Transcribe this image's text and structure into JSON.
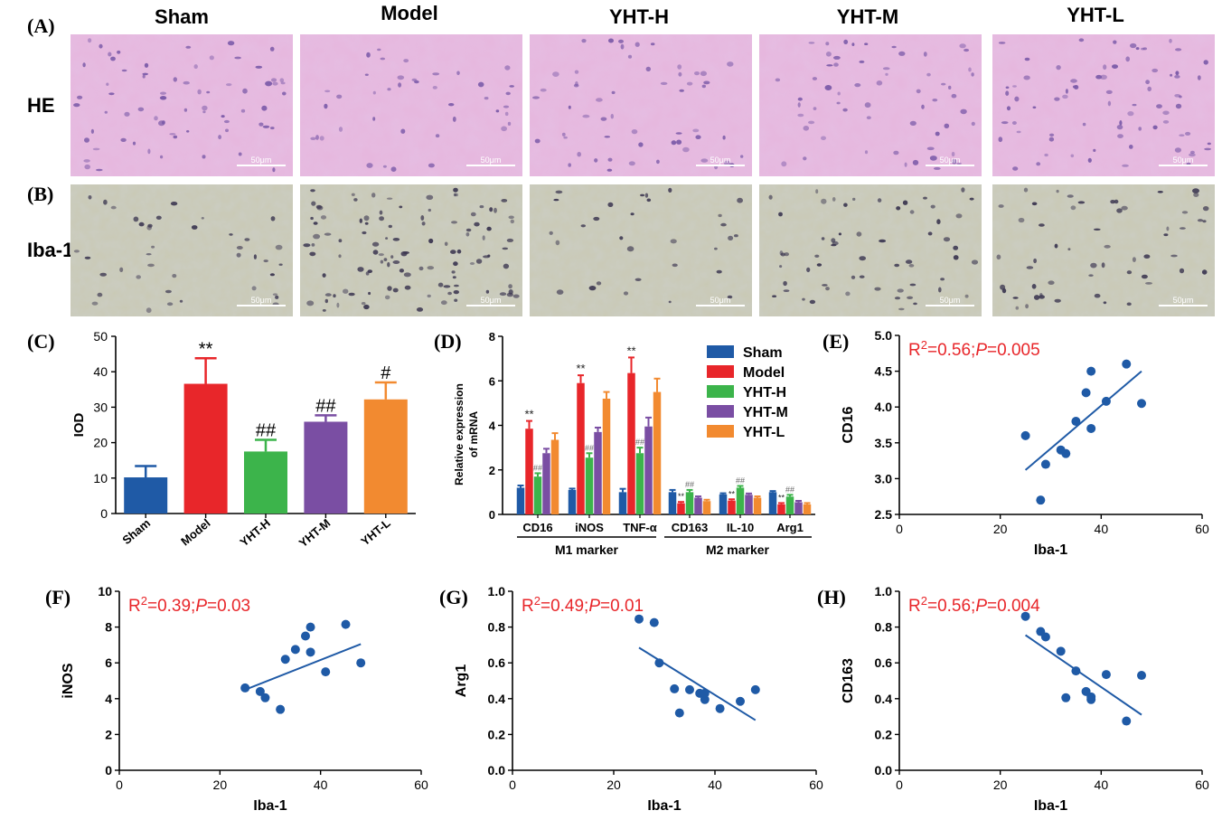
{
  "panel_labels": {
    "A": "(A)",
    "B": "(B)",
    "C": "(C)",
    "D": "(D)",
    "E": "(E)",
    "F": "(F)",
    "G": "(G)",
    "H": "(H)"
  },
  "groups": [
    "Sham",
    "Model",
    "YHT-H",
    "YHT-M",
    "YHT-L"
  ],
  "row_labels": {
    "he": "HE",
    "iba": "Iba-1"
  },
  "scale_bar": "50μm",
  "colors": {
    "Sham": "#1f5aa6",
    "Model": "#e8262a",
    "YHT-H": "#3cb44b",
    "YHT-M": "#7a4ea3",
    "YHT-L": "#f28a30",
    "red_text": "#e8262a",
    "point": "#1f5aa6"
  },
  "chart_data": [
    {
      "id": "C",
      "type": "bar",
      "categories": [
        "Sham",
        "Model",
        "YHT-H",
        "YHT-M",
        "YHT-L"
      ],
      "values": [
        10.2,
        36.6,
        17.5,
        25.9,
        32.2
      ],
      "errors": [
        3.2,
        7.2,
        3.3,
        1.8,
        4.8
      ],
      "annotations": [
        "",
        "**",
        "##",
        "##",
        "#"
      ],
      "ylabel": "IOD",
      "ylim": [
        0,
        50
      ],
      "yticks": [
        0,
        10,
        20,
        30,
        40,
        50
      ]
    },
    {
      "id": "D",
      "type": "bar",
      "categories": [
        "CD16",
        "iNOS",
        "TNF-α",
        "CD163",
        "IL-10",
        "Arg1"
      ],
      "series": [
        {
          "name": "Sham",
          "values": [
            1.2,
            1.1,
            1.0,
            1.0,
            0.9,
            1.0
          ],
          "errors": [
            0.1,
            0.06,
            0.15,
            0.1,
            0.05,
            0.05
          ]
        },
        {
          "name": "Model",
          "values": [
            3.85,
            5.9,
            6.35,
            0.5,
            0.62,
            0.45
          ],
          "errors": [
            0.35,
            0.35,
            0.7,
            0.06,
            0.06,
            0.06
          ]
        },
        {
          "name": "YHT-H",
          "values": [
            1.7,
            2.55,
            2.75,
            1.0,
            1.2,
            0.8
          ],
          "errors": [
            0.15,
            0.2,
            0.25,
            0.1,
            0.08,
            0.08
          ]
        },
        {
          "name": "YHT-M",
          "values": [
            2.75,
            3.7,
            3.95,
            0.75,
            0.88,
            0.55
          ],
          "errors": [
            0.2,
            0.2,
            0.4,
            0.06,
            0.06,
            0.06
          ]
        },
        {
          "name": "YHT-L",
          "values": [
            3.35,
            5.2,
            5.5,
            0.6,
            0.75,
            0.45
          ],
          "errors": [
            0.3,
            0.3,
            0.6,
            0.06,
            0.06,
            0.06
          ]
        }
      ],
      "annotations": {
        "Model": [
          "**",
          "**",
          "**",
          "**",
          "**",
          "**"
        ],
        "YHT-H": [
          "##",
          "##",
          "##",
          "##",
          "##",
          "##"
        ]
      },
      "ylabel": "Relative expression of mRNA",
      "ylim": [
        0,
        8
      ],
      "yticks": [
        0,
        2,
        4,
        6,
        8
      ],
      "group_labels": [
        "M1 marker",
        "M2 marker"
      ],
      "legend": "top-right"
    },
    {
      "id": "E",
      "type": "scatter",
      "x": [
        25,
        28,
        29,
        32,
        33,
        35,
        37,
        38,
        38,
        41,
        45,
        48
      ],
      "y": [
        3.6,
        2.7,
        3.2,
        3.4,
        3.35,
        3.8,
        4.2,
        4.5,
        3.7,
        4.08,
        4.6,
        4.05
      ],
      "fit": [
        [
          25,
          3.12
        ],
        [
          48,
          4.5
        ]
      ],
      "stat": "R²=0.56;P=0.005",
      "stat_r": "R",
      "stat_exp": "2",
      "stat_mid": "=0.56;",
      "stat_p": "P",
      "stat_end": "=0.005",
      "xlabel": "Iba-1",
      "ylabel": "CD16",
      "xlim": [
        0,
        60
      ],
      "ylim": [
        2.5,
        5.0
      ],
      "xticks": [
        0,
        20,
        40,
        60
      ],
      "yticks": [
        "2.5",
        "3.0",
        "3.5",
        "4.0",
        "4.5",
        "5.0"
      ]
    },
    {
      "id": "F",
      "type": "scatter",
      "x": [
        25,
        28,
        29,
        32,
        33,
        35,
        37,
        38,
        38,
        41,
        45,
        48
      ],
      "y": [
        4.6,
        4.4,
        4.05,
        3.4,
        6.2,
        6.75,
        7.5,
        8.0,
        6.6,
        5.5,
        8.15,
        6.0
      ],
      "fit": [
        [
          25,
          4.5
        ],
        [
          48,
          7.05
        ]
      ],
      "stat": "R²=0.39;P=0.03",
      "stat_r": "R",
      "stat_exp": "2",
      "stat_mid": "=0.39;",
      "stat_p": "P",
      "stat_end": "=0.03",
      "xlabel": "Iba-1",
      "ylabel": "iNOS",
      "xlim": [
        0,
        60
      ],
      "ylim": [
        0,
        10
      ],
      "xticks": [
        0,
        20,
        40,
        60
      ],
      "yticks": [
        "0",
        "2",
        "4",
        "6",
        "8",
        "10"
      ]
    },
    {
      "id": "G",
      "type": "scatter",
      "x": [
        25,
        28,
        29,
        32,
        33,
        35,
        37,
        38,
        38,
        41,
        45,
        48
      ],
      "y": [
        0.845,
        0.825,
        0.6,
        0.455,
        0.32,
        0.45,
        0.43,
        0.395,
        0.43,
        0.345,
        0.385,
        0.45
      ],
      "fit": [
        [
          25,
          0.685
        ],
        [
          48,
          0.28
        ]
      ],
      "stat": "R²=0.49;P=0.01",
      "stat_r": "R",
      "stat_exp": "2",
      "stat_mid": "=0.49;",
      "stat_p": "P",
      "stat_end": "=0.01",
      "xlabel": "Iba-1",
      "ylabel": "Arg1",
      "xlim": [
        0,
        60
      ],
      "ylim": [
        0,
        1.0
      ],
      "xticks": [
        0,
        20,
        40,
        60
      ],
      "yticks": [
        "0.0",
        "0.2",
        "0.4",
        "0.6",
        "0.8",
        "1.0"
      ]
    },
    {
      "id": "H",
      "type": "scatter",
      "x": [
        25,
        28,
        29,
        32,
        33,
        35,
        37,
        38,
        38,
        41,
        45,
        48
      ],
      "y": [
        0.86,
        0.775,
        0.745,
        0.665,
        0.405,
        0.555,
        0.44,
        0.41,
        0.395,
        0.535,
        0.275,
        0.53
      ],
      "fit": [
        [
          25,
          0.755
        ],
        [
          48,
          0.31
        ]
      ],
      "stat": "R²=0.56;P=0.004",
      "stat_r": "R",
      "stat_exp": "2",
      "stat_mid": "=0.56;",
      "stat_p": "P",
      "stat_end": "=0.004",
      "xlabel": "Iba-1",
      "ylabel": "CD163",
      "xlim": [
        0,
        60
      ],
      "ylim": [
        0,
        1.0
      ],
      "xticks": [
        0,
        20,
        40,
        60
      ],
      "yticks": [
        "0.0",
        "0.2",
        "0.4",
        "0.6",
        "0.8",
        "1.0"
      ]
    }
  ]
}
